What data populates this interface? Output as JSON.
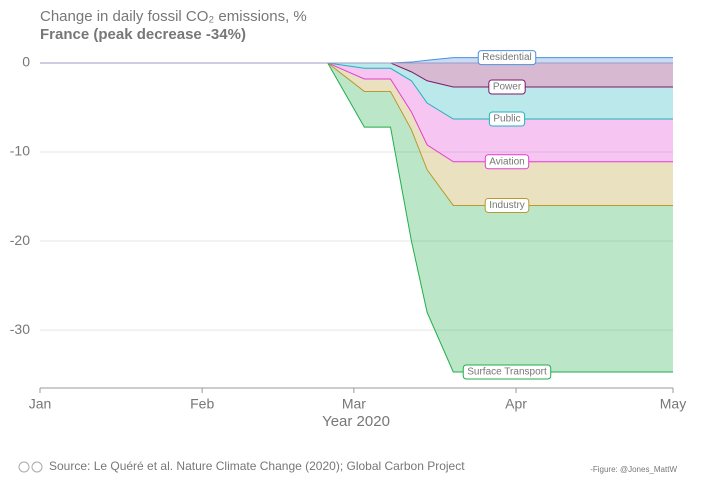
{
  "chart_data": {
    "type": "stacked-area",
    "title": "Change in daily fossil CO₂ emissions, %",
    "subtitle": "France (peak decrease -34%)",
    "x_label": "Year 2020",
    "x": [
      0,
      55,
      62,
      67,
      71,
      74,
      79,
      121
    ],
    "xlim": [
      0,
      121
    ],
    "xticks": [
      {
        "value": 0,
        "label": "Jan"
      },
      {
        "value": 31,
        "label": "Feb"
      },
      {
        "value": 60,
        "label": "Mar"
      },
      {
        "value": 91,
        "label": "Apr"
      },
      {
        "value": 121,
        "label": "May"
      }
    ],
    "ylim": [
      -36.5,
      3.7
    ],
    "yticks": [
      0,
      -10,
      -20,
      -30
    ],
    "grid": true,
    "series": [
      {
        "name": "Residential",
        "color": "#4a90d9",
        "values": [
          0,
          0,
          0,
          0,
          0.1,
          0.3,
          0.6,
          0.6
        ]
      },
      {
        "name": "Power",
        "color": "#7a1a6a",
        "values": [
          0,
          0,
          0,
          0,
          -1,
          -2,
          -2.7,
          -2.7
        ]
      },
      {
        "name": "Public",
        "color": "#1fb3bd",
        "values": [
          0,
          0,
          -0.6,
          -0.6,
          -1,
          -2.5,
          -3.6,
          -3.6
        ]
      },
      {
        "name": "Aviation",
        "color": "#e03fd0",
        "values": [
          0,
          0,
          -1.2,
          -1.2,
          -3.5,
          -4.7,
          -4.8,
          -4.8
        ]
      },
      {
        "name": "Industry",
        "color": "#b89a30",
        "values": [
          0,
          0,
          -1.4,
          -1.4,
          -2,
          -2.8,
          -4.9,
          -4.9
        ]
      },
      {
        "name": "Surface Transport",
        "color": "#1fae4a",
        "values": [
          0,
          0,
          -4,
          -4,
          -12.5,
          -16,
          -18.7,
          -18.7
        ]
      }
    ],
    "source": "Source: Le Quéré et al. Nature Climate Change (2020); Global Carbon Project",
    "credit": "-Figure: @Jones_MattW"
  }
}
